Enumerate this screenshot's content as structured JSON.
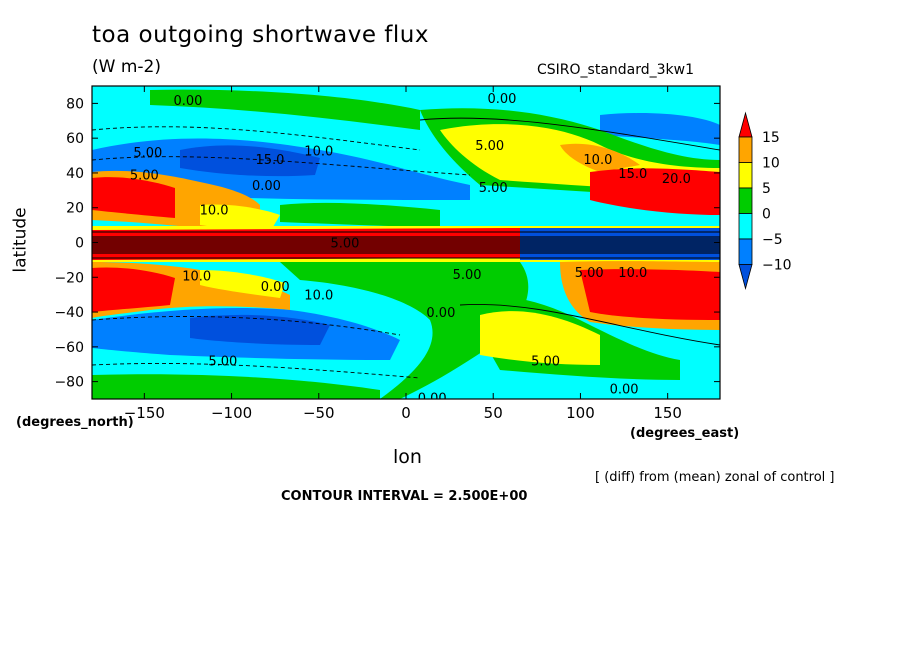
{
  "header": {
    "title": "toa outgoing shortwave flux",
    "units": "(W m-2)",
    "model": "CSIRO_standard_3kw1"
  },
  "axes": {
    "ylabel": "latitude",
    "xlabel": "lon",
    "x_unit": "(degrees_east)",
    "y_unit": "(degrees_north)"
  },
  "footer": {
    "note": "[ (diff) from (mean) zonal of control ]",
    "contour_interval": "CONTOUR INTERVAL = 2.500E+00"
  },
  "chart_data": {
    "type": "heatmap",
    "x_ticks": [
      -150,
      -100,
      -50,
      0,
      50,
      100,
      150
    ],
    "y_ticks": [
      80,
      60,
      40,
      20,
      0,
      -20,
      -40,
      -60,
      -80
    ],
    "xlim": [
      -180,
      180
    ],
    "ylim": [
      -90,
      90
    ],
    "colorbar": {
      "labels": [
        "15",
        "10",
        "5",
        "0",
        "-5",
        "-10"
      ],
      "levels": [
        15,
        10,
        5,
        0,
        -5,
        -10
      ],
      "colors": [
        "#ff0000",
        "#ffa500",
        "#ffff00",
        "#00cc00",
        "#00ffff",
        "#0080ff",
        "#0050dd"
      ],
      "extend": "both"
    },
    "contour_labels": [
      {
        "text": "0.00",
        "lon": -125,
        "lat": 82
      },
      {
        "text": "0.00",
        "lon": 55,
        "lat": 83
      },
      {
        "text": "5.00",
        "lon": -148,
        "lat": 52
      },
      {
        "text": "5.00",
        "lon": 48,
        "lat": 56
      },
      {
        "text": "15.0",
        "lon": -78,
        "lat": 48
      },
      {
        "text": "10.0",
        "lon": -50,
        "lat": 53
      },
      {
        "text": "10.0",
        "lon": 110,
        "lat": 48
      },
      {
        "text": "15.0",
        "lon": 130,
        "lat": 40
      },
      {
        "text": "20.0",
        "lon": 155,
        "lat": 37
      },
      {
        "text": "5.00",
        "lon": -150,
        "lat": 39
      },
      {
        "text": "0.00",
        "lon": -80,
        "lat": 33
      },
      {
        "text": "5.00",
        "lon": 50,
        "lat": 32
      },
      {
        "text": "10.0",
        "lon": -110,
        "lat": 19
      },
      {
        "text": "5.00",
        "lon": -35,
        "lat": 0
      },
      {
        "text": "5.00",
        "lon": 35,
        "lat": -18
      },
      {
        "text": "5.00",
        "lon": 105,
        "lat": -17
      },
      {
        "text": "10.0",
        "lon": 130,
        "lat": -17
      },
      {
        "text": "10.0",
        "lon": -120,
        "lat": -19
      },
      {
        "text": "0.00",
        "lon": -75,
        "lat": -25
      },
      {
        "text": "10.0",
        "lon": -50,
        "lat": -30
      },
      {
        "text": "0.00",
        "lon": 20,
        "lat": -40
      },
      {
        "text": "5.00",
        "lon": -105,
        "lat": -68
      },
      {
        "text": "5.00",
        "lon": 80,
        "lat": -68
      },
      {
        "text": "0.00",
        "lon": 125,
        "lat": -84
      },
      {
        "text": "0.00",
        "lon": 15,
        "lat": -89
      }
    ]
  }
}
